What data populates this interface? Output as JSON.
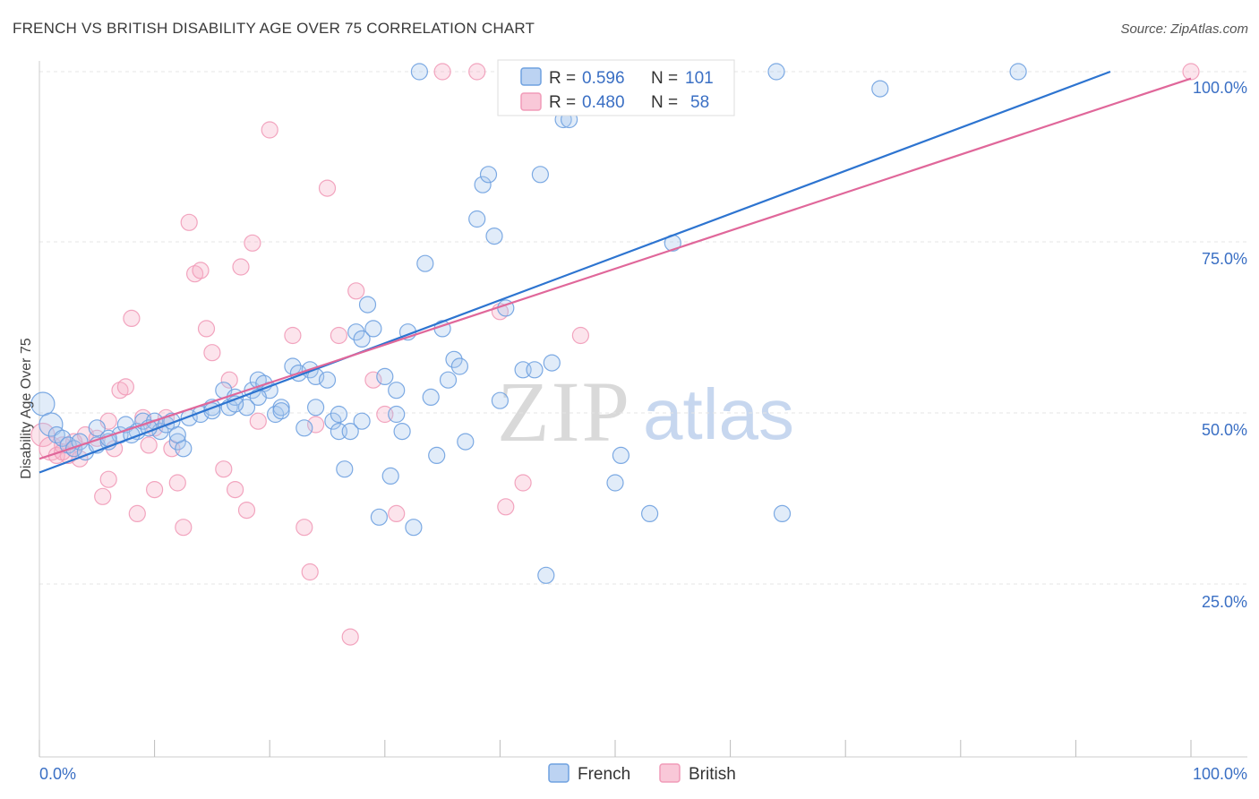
{
  "title": "FRENCH VS BRITISH DISABILITY AGE OVER 75 CORRELATION CHART",
  "source": "Source: ZipAtlas.com",
  "watermark": {
    "part1": "ZIP",
    "part2": "atlas"
  },
  "colors": {
    "french": "#6fa1e0",
    "british": "#f19bb8",
    "french_line": "#2d74d0",
    "british_line": "#e0679a",
    "tick": "#3a6fc4"
  },
  "legend_top": {
    "rows": [
      {
        "r_label": "R = ",
        "r_value": "0.596",
        "n_label": "N = ",
        "n_value": "101"
      },
      {
        "r_label": "R = ",
        "r_value": "0.480",
        "n_label": "N = ",
        "n_value": "58"
      }
    ]
  },
  "legend_bottom": {
    "items": [
      "French",
      "British"
    ]
  },
  "chart_data": {
    "type": "scatter",
    "title": "FRENCH VS BRITISH DISABILITY AGE OVER 75 CORRELATION CHART",
    "xlabel": "",
    "ylabel": "Disability Age Over 75",
    "xlim": [
      0,
      100
    ],
    "ylim": [
      0,
      100
    ],
    "x_tick_labels": [
      "0.0%",
      "100.0%"
    ],
    "y_tick_labels": [
      "25.0%",
      "50.0%",
      "75.0%",
      "100.0%"
    ],
    "y_ticks": [
      25,
      50,
      75,
      100
    ],
    "grid": true,
    "legend_position": "top-center",
    "series": [
      {
        "name": "French",
        "r": 0.596,
        "n": 101,
        "trend": {
          "x0": 0,
          "y0": 41.5,
          "x1": 93,
          "y1": 100
        },
        "points": [
          [
            0.3,
            51.5
          ],
          [
            1,
            48.5
          ],
          [
            1.5,
            47
          ],
          [
            2,
            46.5
          ],
          [
            2.5,
            45.5
          ],
          [
            3,
            45
          ],
          [
            3.5,
            46
          ],
          [
            4,
            44.5
          ],
          [
            5,
            45.5
          ],
          [
            6,
            46
          ],
          [
            7,
            47
          ],
          [
            7.5,
            48.5
          ],
          [
            8.5,
            47.5
          ],
          [
            9,
            49
          ],
          [
            10,
            49
          ],
          [
            10.5,
            47.5
          ],
          [
            11,
            48.5
          ],
          [
            11.5,
            49
          ],
          [
            12,
            46
          ],
          [
            12.5,
            45
          ],
          [
            13,
            49.5
          ],
          [
            14,
            50
          ],
          [
            15,
            51
          ],
          [
            16,
            53.5
          ],
          [
            16.5,
            51
          ],
          [
            17,
            52.5
          ],
          [
            18,
            51
          ],
          [
            18.5,
            53.5
          ],
          [
            19,
            55
          ],
          [
            19.5,
            54.5
          ],
          [
            20,
            53.5
          ],
          [
            20.5,
            50
          ],
          [
            21,
            51
          ],
          [
            22,
            57
          ],
          [
            22.5,
            56
          ],
          [
            23,
            48
          ],
          [
            23.5,
            56.5
          ],
          [
            24,
            55.5
          ],
          [
            25,
            55
          ],
          [
            25.5,
            49
          ],
          [
            26,
            47.5
          ],
          [
            26.5,
            42
          ],
          [
            27,
            47.5
          ],
          [
            27.5,
            62
          ],
          [
            28,
            61
          ],
          [
            28.5,
            66
          ],
          [
            29,
            62.5
          ],
          [
            29.5,
            35
          ],
          [
            30,
            55.5
          ],
          [
            30.5,
            41
          ],
          [
            31,
            53.5
          ],
          [
            31.5,
            47.5
          ],
          [
            32,
            62
          ],
          [
            32.5,
            33.5
          ],
          [
            33,
            100
          ],
          [
            33.5,
            72
          ],
          [
            34,
            52.5
          ],
          [
            34.5,
            44
          ],
          [
            35,
            62.5
          ],
          [
            35.5,
            55
          ],
          [
            36,
            58
          ],
          [
            36.5,
            57
          ],
          [
            37,
            46
          ],
          [
            38,
            78.5
          ],
          [
            38.5,
            83.5
          ],
          [
            39,
            85
          ],
          [
            39.5,
            76
          ],
          [
            40,
            52
          ],
          [
            40.5,
            65.5
          ],
          [
            41,
            100
          ],
          [
            42,
            56.5
          ],
          [
            43,
            56.5
          ],
          [
            43.5,
            85
          ],
          [
            44,
            26.5
          ],
          [
            44.5,
            57.5
          ],
          [
            45,
            100
          ],
          [
            45.5,
            93
          ],
          [
            46,
            93
          ],
          [
            46.5,
            100
          ],
          [
            47,
            100
          ],
          [
            50,
            40
          ],
          [
            50.5,
            44
          ],
          [
            53,
            35.5
          ],
          [
            55,
            75
          ],
          [
            64,
            100
          ],
          [
            64.5,
            35.5
          ],
          [
            73,
            97.5
          ],
          [
            85,
            100
          ],
          [
            5,
            48
          ],
          [
            6,
            46.5
          ],
          [
            8,
            47
          ],
          [
            9.5,
            48
          ],
          [
            12,
            47
          ],
          [
            15,
            50.5
          ],
          [
            17,
            51.5
          ],
          [
            19,
            52.5
          ],
          [
            21,
            50.5
          ],
          [
            24,
            51
          ],
          [
            26,
            50
          ],
          [
            28,
            49
          ],
          [
            31,
            50
          ]
        ]
      },
      {
        "name": "British",
        "r": 0.48,
        "n": 58,
        "trend": {
          "x0": 0,
          "y0": 43.5,
          "x1": 100,
          "y1": 99
        },
        "points": [
          [
            0.3,
            47
          ],
          [
            1,
            45
          ],
          [
            1.5,
            44
          ],
          [
            2,
            45.5
          ],
          [
            2.5,
            44
          ],
          [
            3,
            45
          ],
          [
            3.5,
            43.5
          ],
          [
            4,
            47
          ],
          [
            5,
            46.5
          ],
          [
            5.5,
            38
          ],
          [
            6,
            40.5
          ],
          [
            6.5,
            45
          ],
          [
            7,
            53.5
          ],
          [
            7.5,
            54
          ],
          [
            8,
            64
          ],
          [
            8.5,
            35.5
          ],
          [
            9,
            49.5
          ],
          [
            9.5,
            45.5
          ],
          [
            10,
            39
          ],
          [
            11,
            49.5
          ],
          [
            11.5,
            45
          ],
          [
            12,
            40
          ],
          [
            12.5,
            33.5
          ],
          [
            13,
            78
          ],
          [
            13.5,
            70.5
          ],
          [
            14,
            71
          ],
          [
            14.5,
            62.5
          ],
          [
            15,
            59
          ],
          [
            16,
            42
          ],
          [
            16.5,
            55
          ],
          [
            17,
            39
          ],
          [
            17.5,
            71.5
          ],
          [
            18,
            36
          ],
          [
            18.5,
            75
          ],
          [
            19,
            49
          ],
          [
            20,
            91.5
          ],
          [
            22,
            61.5
          ],
          [
            23,
            33.5
          ],
          [
            23.5,
            27
          ],
          [
            24,
            48.5
          ],
          [
            25,
            83
          ],
          [
            26,
            61.5
          ],
          [
            27,
            17.5
          ],
          [
            27.5,
            68
          ],
          [
            29,
            55
          ],
          [
            30,
            50
          ],
          [
            31,
            35.5
          ],
          [
            35,
            100
          ],
          [
            38,
            100
          ],
          [
            40,
            65
          ],
          [
            40.5,
            36.5
          ],
          [
            42,
            40
          ],
          [
            47,
            61.5
          ],
          [
            100,
            100
          ],
          [
            3,
            46
          ],
          [
            6,
            49
          ],
          [
            10,
            48
          ],
          [
            2,
            44.5
          ]
        ]
      }
    ]
  }
}
